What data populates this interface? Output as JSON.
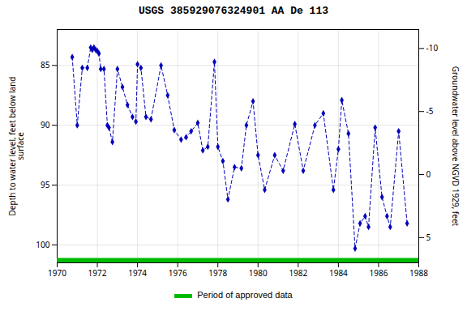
{
  "chart_data": {
    "type": "line",
    "title": "USGS 385929076324901 AA De 113",
    "ylabel": "Depth to water level, feet below land\nsurface",
    "y2label": "Groundwater level above NGVD 1929, feet",
    "xlim": [
      1970,
      1988
    ],
    "xticks": [
      1970,
      1972,
      1974,
      1976,
      1978,
      1980,
      1982,
      1984,
      1986,
      1988
    ],
    "ylim": [
      101.5,
      82.0
    ],
    "yticks": [
      85,
      90,
      95,
      100
    ],
    "y2lim": [
      7.0,
      -11.5
    ],
    "y2ticks": [
      5,
      0,
      -5,
      -10
    ],
    "grid": true,
    "legend": "bottom",
    "x": [
      1970.75,
      1971.0,
      1971.25,
      1971.5,
      1971.67,
      1971.75,
      1971.83,
      1971.92,
      1972.0,
      1972.08,
      1972.17,
      1972.33,
      1972.5,
      1972.58,
      1972.75,
      1973.0,
      1973.25,
      1973.5,
      1973.75,
      1973.92,
      1974.0,
      1974.17,
      1974.42,
      1974.67,
      1975.17,
      1975.5,
      1975.83,
      1976.17,
      1976.42,
      1976.67,
      1977.0,
      1977.25,
      1977.5,
      1977.83,
      1978.0,
      1978.25,
      1978.5,
      1978.83,
      1979.17,
      1979.42,
      1979.75,
      1980.0,
      1980.33,
      1980.83,
      1981.25,
      1981.83,
      1982.25,
      1982.83,
      1983.25,
      1983.75,
      1984.0,
      1984.17,
      1984.5,
      1984.83,
      1985.08,
      1985.33,
      1985.5,
      1985.83,
      1986.17,
      1986.42,
      1986.58,
      1987.0,
      1987.42
    ],
    "series": [
      {
        "color": "#0000bb",
        "marker": "diamond",
        "line_style": "dashed",
        "values": [
          84.3,
          90.0,
          85.2,
          85.2,
          83.5,
          83.7,
          83.5,
          83.7,
          83.8,
          84.0,
          85.3,
          85.3,
          90.0,
          90.2,
          91.4,
          85.3,
          86.8,
          88.3,
          89.3,
          89.7,
          84.9,
          85.2,
          89.3,
          89.5,
          85.0,
          87.5,
          90.4,
          91.2,
          91.0,
          90.5,
          89.8,
          92.1,
          91.8,
          84.7,
          91.8,
          93.0,
          96.2,
          93.5,
          93.6,
          90.0,
          88.0,
          92.5,
          95.4,
          92.5,
          93.8,
          89.9,
          93.8,
          90.0,
          89.0,
          95.4,
          92.0,
          87.9,
          90.7,
          100.3,
          98.2,
          97.6,
          98.5,
          90.2,
          96.0,
          97.6,
          98.5,
          90.5,
          98.2
        ]
      },
      {
        "name": "Period of approved data",
        "color": "#00bb00",
        "type": "period",
        "x": [
          1970,
          1988
        ]
      }
    ]
  }
}
